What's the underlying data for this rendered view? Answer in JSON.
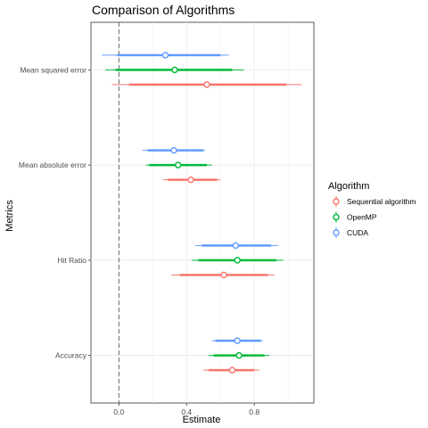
{
  "chart_data": {
    "type": "forest",
    "title": "Comparison of Algorithms",
    "xlabel": "Estimate",
    "ylabel": "Metrics",
    "xlim": [
      -0.165,
      1.152
    ],
    "x_ticks": [
      0.0,
      0.4,
      0.8
    ],
    "x_tick_labels": [
      "0.0",
      "0.4",
      "0.8"
    ],
    "reference_line": 0,
    "grid": true,
    "legend_position": "right",
    "categories": [
      "Mean squared error",
      "Mean absolute error",
      "Hit Ratio",
      "Accuracy"
    ],
    "legend": {
      "title": "Algorithm",
      "items": [
        {
          "label": "Sequential algorithm",
          "color": "#F8766D"
        },
        {
          "label": "OpenMP",
          "color": "#00BA38"
        },
        {
          "label": "CUDA",
          "color": "#619CFF"
        }
      ]
    },
    "series": [
      {
        "name": "CUDA",
        "color": "#619CFF",
        "points": [
          {
            "category": "Mean squared error",
            "estimate": 0.275,
            "inner": [
              -0.01,
              0.6
            ],
            "outer": [
              -0.1,
              0.65
            ]
          },
          {
            "category": "Mean absolute error",
            "estimate": 0.325,
            "inner": [
              0.17,
              0.5
            ],
            "outer": [
              0.14,
              0.51
            ]
          },
          {
            "category": "Hit Ratio",
            "estimate": 0.69,
            "inner": [
              0.49,
              0.9
            ],
            "outer": [
              0.45,
              0.94
            ]
          },
          {
            "category": "Accuracy",
            "estimate": 0.7,
            "inner": [
              0.57,
              0.84
            ],
            "outer": [
              0.55,
              0.85
            ]
          }
        ]
      },
      {
        "name": "OpenMP",
        "color": "#00BA38",
        "points": [
          {
            "category": "Mean squared error",
            "estimate": 0.33,
            "inner": [
              -0.02,
              0.67
            ],
            "outer": [
              -0.08,
              0.74
            ]
          },
          {
            "category": "Mean absolute error",
            "estimate": 0.35,
            "inner": [
              0.18,
              0.52
            ],
            "outer": [
              0.16,
              0.55
            ]
          },
          {
            "category": "Hit Ratio",
            "estimate": 0.7,
            "inner": [
              0.47,
              0.93
            ],
            "outer": [
              0.43,
              0.97
            ]
          },
          {
            "category": "Accuracy",
            "estimate": 0.71,
            "inner": [
              0.56,
              0.86
            ],
            "outer": [
              0.53,
              0.89
            ]
          }
        ]
      },
      {
        "name": "Sequential algorithm",
        "color": "#F8766D",
        "points": [
          {
            "category": "Mean squared error",
            "estimate": 0.52,
            "inner": [
              0.06,
              0.99
            ],
            "outer": [
              -0.04,
              1.08
            ]
          },
          {
            "category": "Mean absolute error",
            "estimate": 0.425,
            "inner": [
              0.29,
              0.58
            ],
            "outer": [
              0.26,
              0.6
            ]
          },
          {
            "category": "Hit Ratio",
            "estimate": 0.62,
            "inner": [
              0.36,
              0.88
            ],
            "outer": [
              0.31,
              0.92
            ]
          },
          {
            "category": "Accuracy",
            "estimate": 0.67,
            "inner": [
              0.53,
              0.8
            ],
            "outer": [
              0.5,
              0.83
            ]
          }
        ]
      }
    ]
  }
}
